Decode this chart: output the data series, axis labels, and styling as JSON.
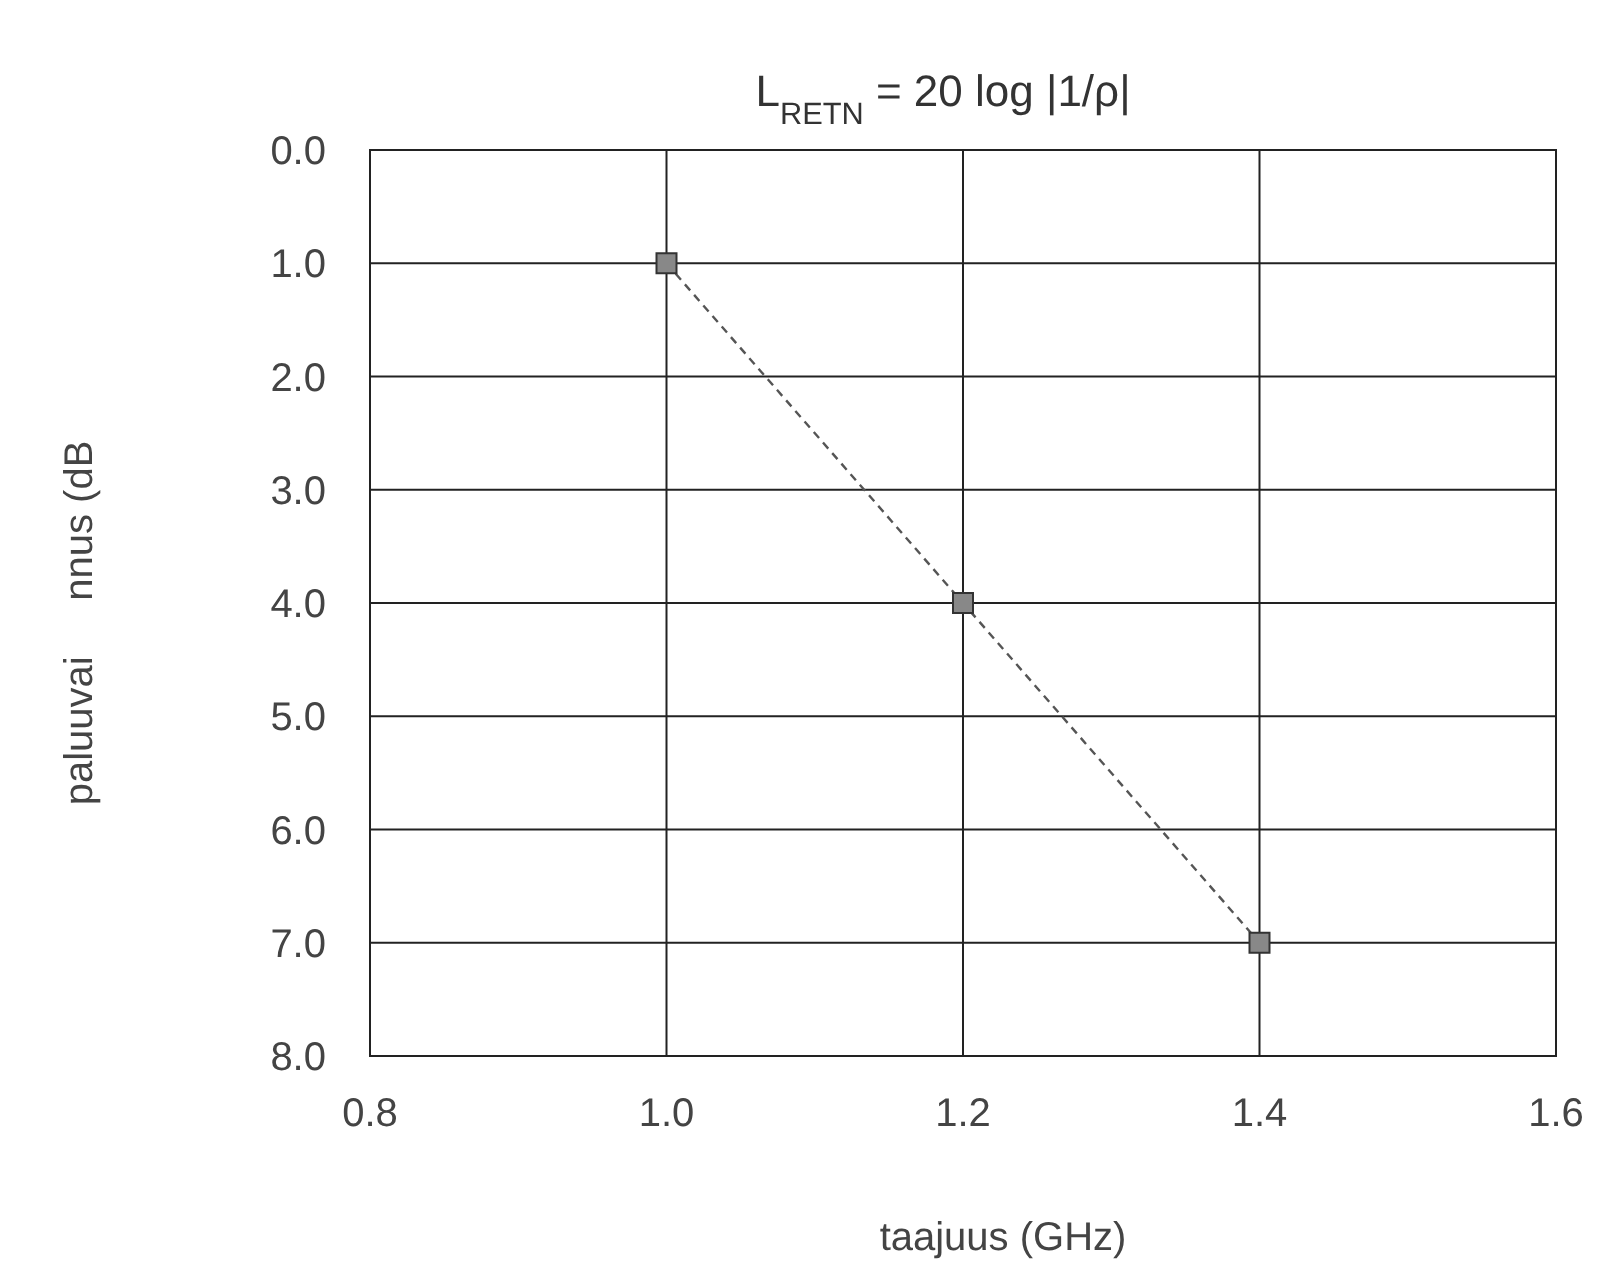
{
  "chart_data": {
    "type": "line",
    "title": "L$_{RETN}$ = 20 log |1/ρ|",
    "xlabel": "taajuus (GHz)",
    "ylabel": "paluuvai     nnus (dB",
    "x": [
      1.0,
      1.2,
      1.4
    ],
    "series": [
      {
        "color": "#555555",
        "values": [
          1.0,
          4.0,
          7.0
        ]
      }
    ],
    "xlim": [
      0.8,
      1.6
    ],
    "xticks": [
      {
        "value": 0.8,
        "label": "0.8"
      },
      {
        "value": 1.0,
        "label": "1.0"
      },
      {
        "value": 1.2,
        "label": "1.2"
      },
      {
        "value": 1.4,
        "label": "1.4"
      },
      {
        "value": 1.6,
        "label": "1.6"
      }
    ],
    "ylim": [
      8,
      0
    ],
    "yticks": [
      {
        "value": 0,
        "label": "0.0"
      },
      {
        "value": 1,
        "label": "1.0"
      },
      {
        "value": 2,
        "label": "2.0"
      },
      {
        "value": 3,
        "label": "3.0"
      },
      {
        "value": 4,
        "label": "4.0"
      },
      {
        "value": 5,
        "label": "5.0"
      },
      {
        "value": 6,
        "label": "6.0"
      },
      {
        "value": 7,
        "label": "7.0"
      },
      {
        "value": 8,
        "label": "8.0"
      }
    ],
    "grid": true,
    "marker": "square",
    "line_style": "dashed"
  }
}
